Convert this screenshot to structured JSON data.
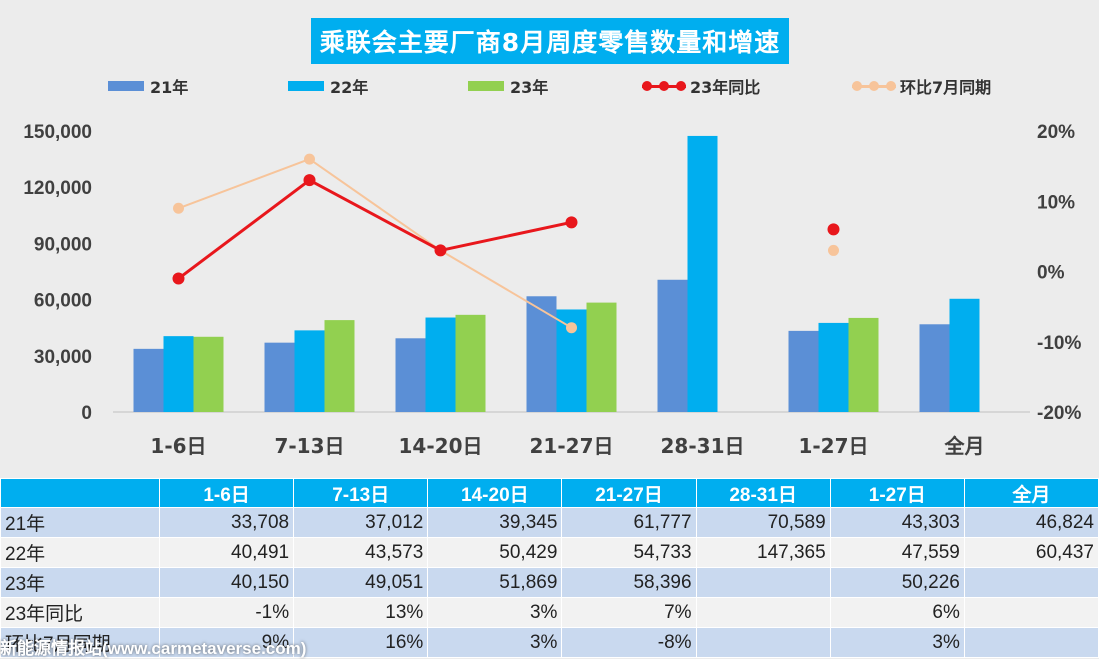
{
  "chart_data": {
    "type": "bar",
    "title": "乘联会主要厂商8月周度零售数量和增速",
    "categories": [
      "1-6日",
      "7-13日",
      "14-20日",
      "21-27日",
      "28-31日",
      "1-27日",
      "全月"
    ],
    "series": [
      {
        "name": "21年",
        "type": "bar",
        "color": "#5b8fd6",
        "values": [
          33708,
          37012,
          39345,
          61777,
          70589,
          43303,
          46824
        ]
      },
      {
        "name": "22年",
        "type": "bar",
        "color": "#00aeef",
        "values": [
          40491,
          43573,
          50429,
          54733,
          147365,
          47559,
          60437
        ]
      },
      {
        "name": "23年",
        "type": "bar",
        "color": "#92d050",
        "values": [
          40150,
          49051,
          51869,
          58396,
          null,
          50226,
          null
        ]
      },
      {
        "name": "23年同比",
        "type": "line",
        "axis": "right",
        "color": "#e8171c",
        "values": [
          -1,
          13,
          3,
          7,
          null,
          6,
          null
        ]
      },
      {
        "name": "环比7月同期",
        "type": "line",
        "axis": "right",
        "color": "#f7c49a",
        "values": [
          9,
          16,
          3,
          -8,
          null,
          3,
          null
        ]
      }
    ],
    "y_left": {
      "range": [
        0,
        150000
      ],
      "ticks": [
        "0",
        "30,000",
        "60,000",
        "90,000",
        "120,000",
        "150,000"
      ],
      "tick_values": [
        0,
        30000,
        60000,
        90000,
        120000,
        150000
      ]
    },
    "y_right": {
      "range": [
        -20,
        20
      ],
      "ticks": [
        "-20%",
        "-10%",
        "0%",
        "10%",
        "20%"
      ],
      "tick_values": [
        -20,
        -10,
        0,
        10,
        20
      ]
    },
    "legend_position": "top",
    "grid": false
  },
  "table": {
    "headers": [
      "",
      "1-6日",
      "7-13日",
      "14-20日",
      "21-27日",
      "28-31日",
      "1-27日",
      "全月"
    ],
    "rows": [
      [
        "21年",
        "33,708",
        "37,012",
        "39,345",
        "61,777",
        "70,589",
        "43,303",
        "46,824"
      ],
      [
        "22年",
        "40,491",
        "43,573",
        "50,429",
        "54,733",
        "147,365",
        "47,559",
        "60,437"
      ],
      [
        "23年",
        "40,150",
        "49,051",
        "51,869",
        "58,396",
        "",
        "50,226",
        ""
      ],
      [
        "23年同比",
        "-1%",
        "13%",
        "3%",
        "7%",
        "",
        "6%",
        ""
      ],
      [
        "环比7月同期",
        "9%",
        "16%",
        "3%",
        "-8%",
        "",
        "3%",
        ""
      ]
    ]
  },
  "watermark": "新能源情报站(www.carmetaverse.com)"
}
